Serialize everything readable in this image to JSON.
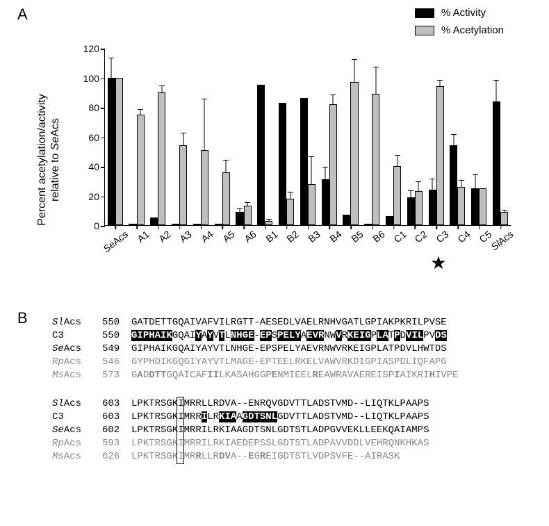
{
  "panelA": {
    "label": "A",
    "type": "bar",
    "y_title_line1": "Percent acetylation/activity",
    "y_title_line2": "relative to SeAcs",
    "y_title_italic_prefix": "Se",
    "legend": [
      {
        "label": "% Activity",
        "color": "#000000"
      },
      {
        "label": "% Acetylation",
        "color": "#bfbfbf"
      }
    ],
    "ylim": [
      0,
      120
    ],
    "ytick_step": 20,
    "bar_colors": {
      "activity": "#000000",
      "acetylation": "#bfbfbf"
    },
    "categories": [
      {
        "label": "SeAcs",
        "italic_prefix": "Se",
        "activity": 100,
        "activity_err": 13,
        "acet": 100,
        "acet_err": 0
      },
      {
        "label": "A1",
        "activity": 1,
        "activity_err": 0,
        "acet": 75,
        "acet_err": 3
      },
      {
        "label": "A2",
        "activity": 5,
        "activity_err": 0,
        "acet": 90,
        "acet_err": 4
      },
      {
        "label": "A3",
        "activity": 1,
        "activity_err": 0,
        "acet": 54,
        "acet_err": 8
      },
      {
        "label": "A4",
        "activity": 1,
        "activity_err": 0,
        "acet": 51,
        "acet_err": 34
      },
      {
        "label": "A5",
        "activity": 1,
        "activity_err": 0,
        "acet": 36,
        "acet_err": 8
      },
      {
        "label": "A6",
        "activity": 9,
        "activity_err": 2,
        "acet": 13,
        "acet_err": 2
      },
      {
        "label": "B1",
        "activity": 95,
        "activity_err": 0,
        "acet": 3,
        "acet_err": 1
      },
      {
        "label": "B2",
        "activity": 83,
        "activity_err": 0,
        "acet": 18,
        "acet_err": 4
      },
      {
        "label": "B3",
        "activity": 86,
        "activity_err": 0,
        "acet": 28,
        "acet_err": 18
      },
      {
        "label": "B4",
        "activity": 31,
        "activity_err": 8,
        "acet": 82,
        "acet_err": 6
      },
      {
        "label": "B5",
        "activity": 7,
        "activity_err": 0,
        "acet": 97,
        "acet_err": 15
      },
      {
        "label": "B6",
        "activity": 1,
        "activity_err": 0,
        "acet": 89,
        "acet_err": 18
      },
      {
        "label": "C1",
        "activity": 6,
        "activity_err": 0,
        "acet": 40,
        "acet_err": 7
      },
      {
        "label": "C2",
        "activity": 19,
        "activity_err": 4,
        "acet": 23,
        "acet_err": 6
      },
      {
        "label": "C3",
        "activity": 24,
        "activity_err": 7,
        "acet": 94,
        "acet_err": 4,
        "star": true
      },
      {
        "label": "C4",
        "activity": 54,
        "activity_err": 7,
        "acet": 26,
        "acet_err": 4
      },
      {
        "label": "C5",
        "activity": 25,
        "activity_err": 9,
        "acet": 25,
        "acet_err": 0
      },
      {
        "label": "SlAcs",
        "italic_prefix": "Sl",
        "activity": 84,
        "activity_err": 14,
        "acet": 9,
        "acet_err": 1
      }
    ],
    "background_color": "#ffffff",
    "axis_color": "#000000",
    "label_fontsize": 14
  },
  "panelB": {
    "label": "B",
    "font": "Courier New",
    "fontsize": 14,
    "box_char_index_block2": 8,
    "blocks": [
      {
        "rows": [
          {
            "name": "SlAcs",
            "name_italic_prefix": "Sl",
            "num": "550",
            "seq": "GATDETTGQAIVAFVILRGTT-AESEDLVAELRNHVGATLGPIAKPKRILPVSE",
            "gray": false
          },
          {
            "name": "C3",
            "num": "550",
            "seq": "GIPHAIKGQAIYAYVTLNHGE-EPSPELYAEVRNWVRKEIGPLATPDVILPVDS",
            "gray": false,
            "inv_ranges": [
              [
                0,
                7
              ],
              [
                11,
                12
              ],
              [
                13,
                14
              ],
              [
                15,
                16
              ],
              [
                17,
                21
              ],
              [
                22,
                24
              ],
              [
                25,
                29
              ],
              [
                30,
                33
              ],
              [
                35,
                36
              ],
              [
                37,
                41
              ],
              [
                42,
                44
              ],
              [
                45,
                46
              ],
              [
                47,
                50
              ],
              [
                52,
                54
              ]
            ]
          },
          {
            "name": "SeAcs",
            "name_italic_prefix": "Se",
            "num": "549",
            "seq": "GIPHAIKGQAIYAYVTLNHGE-EPSPELYAEVRNWVRKEIGPLATPDVLHWTDS",
            "gray": false
          },
          {
            "name": "RpAcs",
            "name_italic_prefix": "Rp",
            "num": "546",
            "seq": "GYPHDIKGQGIYAYVTLMAGE-EPTEELRKELVAWVRKDIGPIASPDLIQFAPG",
            "gray": true
          },
          {
            "name": "MsAcs",
            "name_italic_prefix": "Ms",
            "num": "573",
            "seq": "GADDTTGQAICAFIILKASAHGGPENMIEELREAWRAVAEREISPIAIKRIHIVPE",
            "gray": true,
            "bold_idx": [
              1,
              3,
              4,
              5,
              13,
              14,
              24,
              31,
              45,
              51
            ]
          }
        ]
      },
      {
        "rows": [
          {
            "name": "SlAcs",
            "name_italic_prefix": "Sl",
            "num": "603",
            "seq": "LPKTRSGKIMRRLLRDVA--ENRQVGDVTTLADSTVMD--LIQTKLPAAPS",
            "gray": false
          },
          {
            "name": "C3",
            "num": "603",
            "seq": "LPKTRSGKIMRRILRKIAAGDTSNLGDVTTLADSTVMD--LIQTKLPAAPS",
            "gray": false,
            "inv_ranges": [
              [
                12,
                13
              ],
              [
                15,
                18
              ],
              [
                19,
                25
              ]
            ]
          },
          {
            "name": "SeAcs",
            "name_italic_prefix": "Se",
            "num": "602",
            "seq": "LPKTRSGKIMRRILRKIAAGDTSNLGDTSTLADPGVVEKLLEEKQAIAMPS",
            "gray": false
          },
          {
            "name": "RpAcs",
            "name_italic_prefix": "Rp",
            "num": "593",
            "seq": "LPKTRSGKIMRRILRKIAEDEPSSLGDTSTLADPAVVDDLVEHRQNKHKAS",
            "gray": true
          },
          {
            "name": "MsAcs",
            "name_italic_prefix": "Ms",
            "num": "626",
            "seq": "LPKTRSGKIMRRLLRDVA--EGREIGDTSTLVDPSVFE--AIRASK",
            "gray": true,
            "bold_idx": [
              11,
              15,
              16,
              20,
              22
            ]
          }
        ]
      }
    ]
  }
}
